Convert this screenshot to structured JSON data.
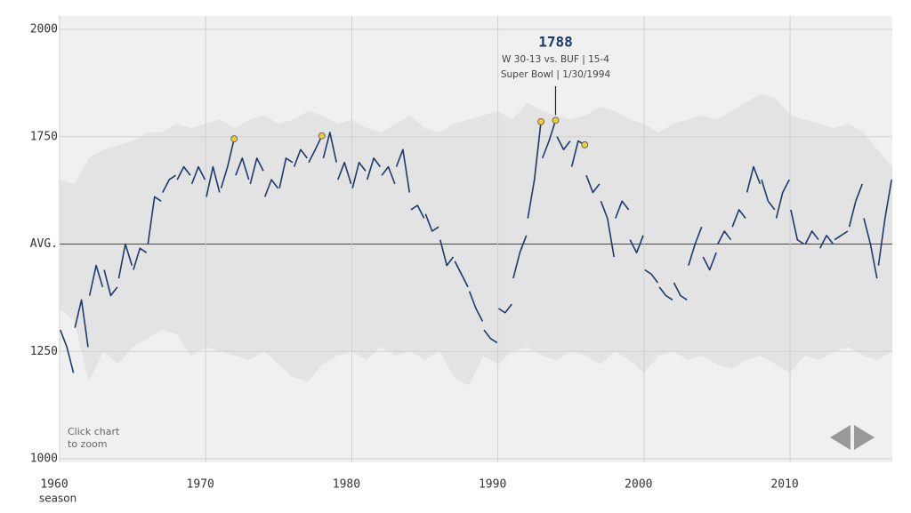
{
  "chart_data": {
    "type": "line",
    "xlim": [
      1960,
      2017
    ],
    "xticks": [
      1960,
      1970,
      1980,
      1990,
      2000,
      2010
    ],
    "ylim": [
      1000,
      2000
    ],
    "yticks": [
      1000,
      1250,
      {
        "value": 1500,
        "label": "AVG."
      },
      1750,
      2000
    ],
    "x_label": "season",
    "grid": true,
    "note": [
      "Click chart",
      "to zoom"
    ],
    "annotation": {
      "x": 1993.95,
      "value": 1788,
      "lines": [
        "W 30-13 vs. BUF | 15-4",
        "Super Bowl | 1/30/1994"
      ]
    },
    "band": {
      "color": "#e3e3e3",
      "x": [
        1960,
        1961,
        1962,
        1963,
        1964,
        1965,
        1966,
        1967,
        1968,
        1969,
        1970,
        1971,
        1972,
        1973,
        1974,
        1975,
        1976,
        1977,
        1978,
        1979,
        1980,
        1981,
        1982,
        1983,
        1984,
        1985,
        1986,
        1987,
        1988,
        1989,
        1990,
        1991,
        1992,
        1993,
        1994,
        1995,
        1996,
        1997,
        1998,
        1999,
        2000,
        2001,
        2002,
        2003,
        2004,
        2005,
        2006,
        2007,
        2008,
        2009,
        2010,
        2011,
        2012,
        2013,
        2014,
        2015,
        2016,
        2017
      ],
      "upper": [
        1650,
        1640,
        1700,
        1720,
        1730,
        1740,
        1760,
        1760,
        1780,
        1770,
        1780,
        1790,
        1770,
        1790,
        1800,
        1780,
        1790,
        1810,
        1800,
        1780,
        1790,
        1770,
        1760,
        1780,
        1800,
        1770,
        1760,
        1780,
        1790,
        1800,
        1810,
        1790,
        1830,
        1810,
        1800,
        1790,
        1800,
        1820,
        1810,
        1790,
        1780,
        1760,
        1780,
        1790,
        1800,
        1790,
        1810,
        1830,
        1850,
        1840,
        1800,
        1790,
        1780,
        1770,
        1780,
        1760,
        1720,
        1680
      ],
      "lower": [
        1350,
        1320,
        1180,
        1250,
        1220,
        1260,
        1280,
        1300,
        1290,
        1240,
        1260,
        1250,
        1240,
        1230,
        1250,
        1220,
        1190,
        1180,
        1220,
        1240,
        1250,
        1230,
        1260,
        1240,
        1250,
        1230,
        1250,
        1190,
        1170,
        1240,
        1220,
        1250,
        1260,
        1240,
        1230,
        1250,
        1240,
        1220,
        1250,
        1230,
        1200,
        1240,
        1250,
        1230,
        1240,
        1220,
        1210,
        1230,
        1240,
        1220,
        1200,
        1240,
        1230,
        1250,
        1260,
        1240,
        1230,
        1250
      ]
    },
    "series": [
      {
        "color": "#1b3a6e",
        "x": [
          1960.05,
          1960.5,
          1960.95,
          1960.98,
          1961.05,
          1961.5,
          1961.95,
          1961.98,
          1962.05,
          1962.5,
          1962.95,
          1962.98,
          1963.05,
          1963.5,
          1963.95,
          1963.98,
          1964.05,
          1964.5,
          1964.95,
          1964.98,
          1965.05,
          1965.5,
          1965.95,
          1965.98,
          1966.05,
          1966.5,
          1966.95,
          1966.98,
          1967.05,
          1967.5,
          1967.95,
          1967.98,
          1968.05,
          1968.5,
          1968.95,
          1968.98,
          1969.05,
          1969.5,
          1969.95,
          1969.98,
          1970.05,
          1970.5,
          1970.95,
          1970.98,
          1971.05,
          1971.5,
          1971.95,
          1971.98,
          1972.05,
          1972.5,
          1972.95,
          1972.98,
          1973.05,
          1973.5,
          1973.95,
          1973.98,
          1974.05,
          1974.5,
          1974.95,
          1974.98,
          1975.05,
          1975.5,
          1975.95,
          1975.98,
          1976.05,
          1976.5,
          1976.95,
          1976.98,
          1977.05,
          1977.5,
          1977.95,
          1977.98,
          1978.05,
          1978.5,
          1978.95,
          1978.98,
          1979.05,
          1979.5,
          1979.95,
          1979.98,
          1980.05,
          1980.5,
          1980.95,
          1980.98,
          1981.05,
          1981.5,
          1981.95,
          1981.98,
          1982.05,
          1982.5,
          1982.95,
          1982.98,
          1983.05,
          1983.5,
          1983.95,
          1983.98,
          1984.05,
          1984.5,
          1984.95,
          1984.98,
          1985.05,
          1985.5,
          1985.95,
          1985.98,
          1986.05,
          1986.5,
          1986.95,
          1986.98,
          1987.05,
          1987.5,
          1987.95,
          1987.98,
          1988.05,
          1988.5,
          1988.95,
          1988.98,
          1989.05,
          1989.5,
          1989.95,
          1989.98,
          1990.05,
          1990.5,
          1990.95,
          1990.98,
          1991.05,
          1991.5,
          1991.95,
          1991.98,
          1992.05,
          1992.5,
          1992.95,
          1992.98,
          1993.05,
          1993.5,
          1993.95,
          1993.98,
          1994.05,
          1994.5,
          1994.95,
          1994.98,
          1995.05,
          1995.5,
          1995.95,
          1995.98,
          1996.05,
          1996.5,
          1996.95,
          1996.98,
          1997.05,
          1997.5,
          1997.95,
          1997.98,
          1998.05,
          1998.5,
          1998.95,
          1998.98,
          1999.05,
          1999.5,
          1999.95,
          1999.98,
          2000.05,
          2000.5,
          2000.95,
          2000.98,
          2001.05,
          2001.5,
          2001.95,
          2001.98,
          2002.05,
          2002.5,
          2002.95,
          2002.98,
          2003.05,
          2003.5,
          2003.95,
          2003.98,
          2004.05,
          2004.5,
          2004.95,
          2004.98,
          2005.05,
          2005.5,
          2005.95,
          2005.98,
          2006.05,
          2006.5,
          2006.95,
          2006.98,
          2007.05,
          2007.5,
          2007.95,
          2007.98,
          2008.05,
          2008.5,
          2008.95,
          2008.98,
          2009.05,
          2009.5,
          2009.95,
          2009.98,
          2010.05,
          2010.5,
          2010.95,
          2010.98,
          2011.05,
          2011.5,
          2011.95,
          2011.98,
          2012.05,
          2012.5,
          2012.95,
          2012.98,
          2013.05,
          2013.5,
          2013.95,
          2013.98,
          2014.05,
          2014.5,
          2014.95,
          2014.98,
          2015.05,
          2015.5,
          2015.95,
          2015.98,
          2016.05,
          2016.5,
          2016.95
        ],
        "values": [
          1300,
          1260,
          1200,
          null,
          1305,
          1370,
          1260,
          null,
          1380,
          1450,
          1400,
          null,
          1440,
          1380,
          1400,
          null,
          1420,
          1500,
          1450,
          null,
          1440,
          1490,
          1480,
          null,
          1500,
          1610,
          1600,
          null,
          1620,
          1650,
          1660,
          null,
          1650,
          1680,
          1660,
          null,
          1640,
          1680,
          1650,
          null,
          1610,
          1680,
          1620,
          null,
          1630,
          1680,
          1745,
          null,
          1660,
          1700,
          1650,
          null,
          1640,
          1700,
          1670,
          null,
          1610,
          1650,
          1630,
          null,
          1630,
          1700,
          1690,
          null,
          1680,
          1720,
          1700,
          null,
          1690,
          1720,
          1752,
          null,
          1700,
          1760,
          1690,
          null,
          1650,
          1690,
          1640,
          null,
          1630,
          1690,
          1670,
          null,
          1650,
          1700,
          1680,
          null,
          1660,
          1680,
          1640,
          null,
          1680,
          1720,
          1620,
          null,
          1580,
          1590,
          1560,
          null,
          1570,
          1530,
          1540,
          null,
          1510,
          1450,
          1470,
          null,
          1460,
          1430,
          1400,
          null,
          1390,
          1350,
          1320,
          null,
          1300,
          1280,
          1270,
          null,
          1350,
          1340,
          1360,
          null,
          1420,
          1480,
          1520,
          null,
          1560,
          1650,
          1785,
          null,
          1700,
          1740,
          1788,
          null,
          1750,
          1720,
          1740,
          null,
          1680,
          1740,
          1731,
          null,
          1660,
          1620,
          1640,
          null,
          1600,
          1560,
          1470,
          null,
          1560,
          1600,
          1580,
          null,
          1510,
          1480,
          1520,
          null,
          1440,
          1430,
          1410,
          null,
          1400,
          1380,
          1370,
          null,
          1410,
          1380,
          1370,
          null,
          1450,
          1500,
          1540,
          null,
          1470,
          1440,
          1480,
          null,
          1500,
          1530,
          1510,
          null,
          1540,
          1580,
          1560,
          null,
          1620,
          1680,
          1640,
          null,
          1650,
          1600,
          1580,
          null,
          1560,
          1620,
          1650,
          null,
          1580,
          1510,
          1500,
          null,
          1500,
          1530,
          1510,
          null,
          1490,
          1520,
          1500,
          null,
          1510,
          1520,
          1530,
          null,
          1540,
          1600,
          1640,
          null,
          1560,
          1500,
          1420,
          null,
          1450,
          1560,
          1650
        ]
      }
    ],
    "highlights": {
      "color": "#f2c935",
      "x": [
        1971.95,
        1977.95,
        1992.95,
        1993.95,
        1995.95
      ],
      "values": [
        1745,
        1752,
        1785,
        1788,
        1731
      ]
    }
  }
}
